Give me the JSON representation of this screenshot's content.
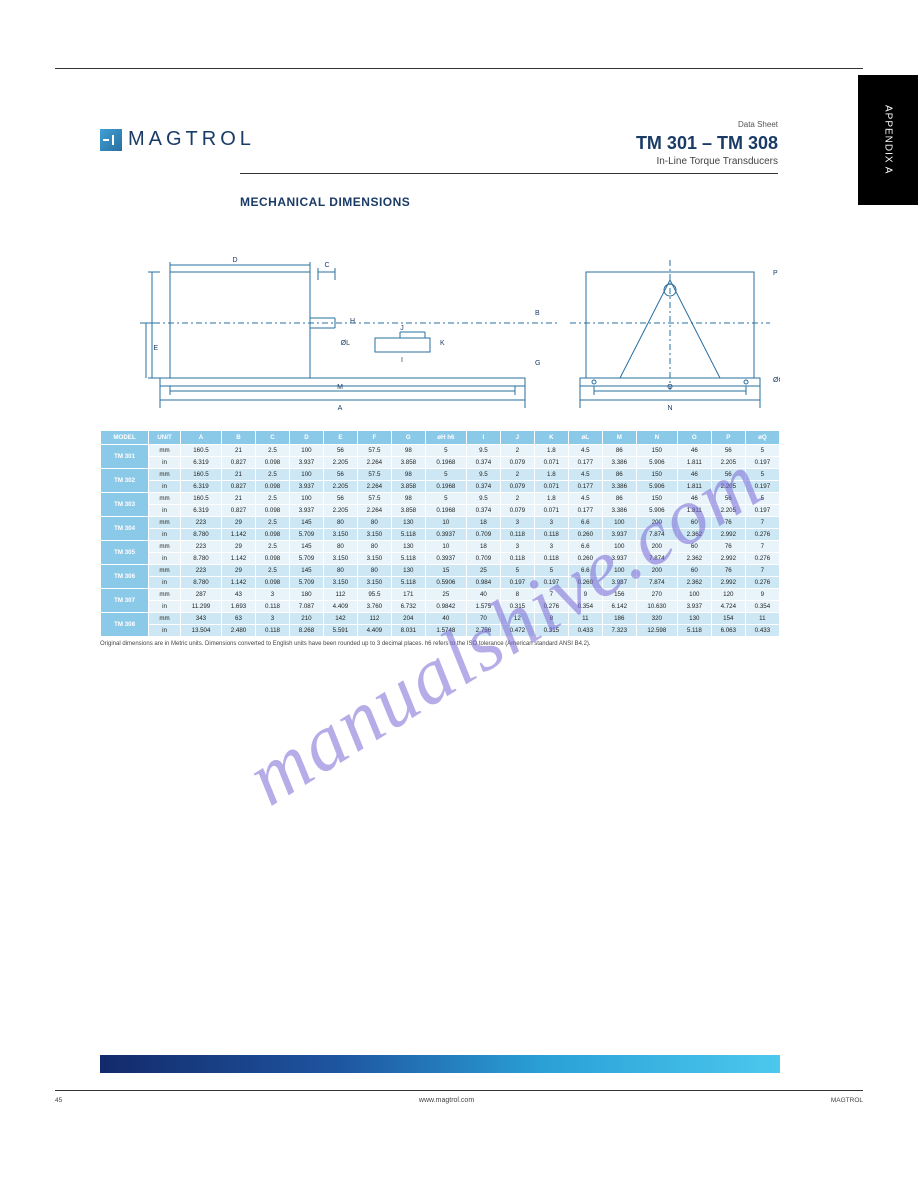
{
  "colors": {
    "brand_text": "#1a3b66",
    "table_header_bg": "#8bc9e8",
    "table_band_dark": "#cde8f4",
    "table_band_light": "#e8f4fa",
    "gradient_start": "#132a6a",
    "gradient_end": "#4cc8ee",
    "watermark": "#7a6ad6",
    "diagram_stroke": "#2a6fa0",
    "diagram_dash": "#2a6fa0"
  },
  "header": {
    "brand": "MAGTROL",
    "datasheet": "Data Sheet",
    "title": "TM 301 – TM 308",
    "subtitle": "In-Line Torque Transducers"
  },
  "side_tab": "APPENDIX A",
  "section_title": "MECHANICAL DIMENSIONS",
  "diagram_labels": {
    "A": "A",
    "B": "B",
    "C": "C",
    "D": "D",
    "E": "E",
    "F": "F",
    "G": "G",
    "H": "H",
    "I": "I",
    "J": "J",
    "K": "K",
    "L": "ØL",
    "M": "M",
    "N": "N",
    "O": "O",
    "P": "P",
    "Q": "ØQ"
  },
  "table": {
    "headers": [
      "MODEL",
      "UNIT",
      "A",
      "B",
      "C",
      "D",
      "E",
      "F",
      "G",
      "øH h6",
      "I",
      "J",
      "K",
      "øL",
      "M",
      "N",
      "O",
      "P",
      "øQ"
    ],
    "rows": [
      {
        "model": "TM 301",
        "unit": [
          "mm",
          "in"
        ],
        "cells": [
          [
            "160.5",
            "6.319"
          ],
          [
            "21",
            "0.827"
          ],
          [
            "2.5",
            "0.098"
          ],
          [
            "100",
            "3.937"
          ],
          [
            "56",
            "2.205"
          ],
          [
            "57.5",
            "2.264"
          ],
          [
            "98",
            "3.858"
          ],
          [
            "5",
            "0.1968"
          ],
          [
            "9.5",
            "0.374"
          ],
          [
            "2",
            "0.079"
          ],
          [
            "1.8",
            "0.071"
          ],
          [
            "4.5",
            "0.177"
          ],
          [
            "86",
            "3.386"
          ],
          [
            "150",
            "5.906"
          ],
          [
            "46",
            "1.811"
          ],
          [
            "56",
            "2.205"
          ],
          [
            "5",
            "0.197"
          ]
        ]
      },
      {
        "model": "TM 302",
        "unit": [
          "mm",
          "in"
        ],
        "cells": [
          [
            "160.5",
            "6.319"
          ],
          [
            "21",
            "0.827"
          ],
          [
            "2.5",
            "0.098"
          ],
          [
            "100",
            "3.937"
          ],
          [
            "56",
            "2.205"
          ],
          [
            "57.5",
            "2.264"
          ],
          [
            "98",
            "3.858"
          ],
          [
            "5",
            "0.1968"
          ],
          [
            "9.5",
            "0.374"
          ],
          [
            "2",
            "0.079"
          ],
          [
            "1.8",
            "0.071"
          ],
          [
            "4.5",
            "0.177"
          ],
          [
            "86",
            "3.386"
          ],
          [
            "150",
            "5.906"
          ],
          [
            "46",
            "1.811"
          ],
          [
            "56",
            "2.205"
          ],
          [
            "5",
            "0.197"
          ]
        ]
      },
      {
        "model": "TM 303",
        "unit": [
          "mm",
          "in"
        ],
        "cells": [
          [
            "160.5",
            "6.319"
          ],
          [
            "21",
            "0.827"
          ],
          [
            "2.5",
            "0.098"
          ],
          [
            "100",
            "3.937"
          ],
          [
            "56",
            "2.205"
          ],
          [
            "57.5",
            "2.264"
          ],
          [
            "98",
            "3.858"
          ],
          [
            "5",
            "0.1968"
          ],
          [
            "9.5",
            "0.374"
          ],
          [
            "2",
            "0.079"
          ],
          [
            "1.8",
            "0.071"
          ],
          [
            "4.5",
            "0.177"
          ],
          [
            "86",
            "3.386"
          ],
          [
            "150",
            "5.906"
          ],
          [
            "46",
            "1.811"
          ],
          [
            "56",
            "2.205"
          ],
          [
            "5",
            "0.197"
          ]
        ]
      },
      {
        "model": "TM 304",
        "unit": [
          "mm",
          "in"
        ],
        "cells": [
          [
            "223",
            "8.780"
          ],
          [
            "29",
            "1.142"
          ],
          [
            "2.5",
            "0.098"
          ],
          [
            "145",
            "5.709"
          ],
          [
            "80",
            "3.150"
          ],
          [
            "80",
            "3.150"
          ],
          [
            "130",
            "5.118"
          ],
          [
            "10",
            "0.3937"
          ],
          [
            "18",
            "0.709"
          ],
          [
            "3",
            "0.118"
          ],
          [
            "3",
            "0.118"
          ],
          [
            "6.6",
            "0.260"
          ],
          [
            "100",
            "3.937"
          ],
          [
            "200",
            "7.874"
          ],
          [
            "60",
            "2.362"
          ],
          [
            "76",
            "2.992"
          ],
          [
            "7",
            "0.276"
          ]
        ]
      },
      {
        "model": "TM 305",
        "unit": [
          "mm",
          "in"
        ],
        "cells": [
          [
            "223",
            "8.780"
          ],
          [
            "29",
            "1.142"
          ],
          [
            "2.5",
            "0.098"
          ],
          [
            "145",
            "5.709"
          ],
          [
            "80",
            "3.150"
          ],
          [
            "80",
            "3.150"
          ],
          [
            "130",
            "5.118"
          ],
          [
            "10",
            "0.3937"
          ],
          [
            "18",
            "0.709"
          ],
          [
            "3",
            "0.118"
          ],
          [
            "3",
            "0.118"
          ],
          [
            "6.6",
            "0.260"
          ],
          [
            "100",
            "3.937"
          ],
          [
            "200",
            "7.874"
          ],
          [
            "60",
            "2.362"
          ],
          [
            "76",
            "2.992"
          ],
          [
            "7",
            "0.276"
          ]
        ]
      },
      {
        "model": "TM 306",
        "unit": [
          "mm",
          "in"
        ],
        "cells": [
          [
            "223",
            "8.780"
          ],
          [
            "29",
            "1.142"
          ],
          [
            "2.5",
            "0.098"
          ],
          [
            "145",
            "5.709"
          ],
          [
            "80",
            "3.150"
          ],
          [
            "80",
            "3.150"
          ],
          [
            "130",
            "5.118"
          ],
          [
            "15",
            "0.5906"
          ],
          [
            "25",
            "0.984"
          ],
          [
            "5",
            "0.197"
          ],
          [
            "5",
            "0.197"
          ],
          [
            "6.6",
            "0.260"
          ],
          [
            "100",
            "3.937"
          ],
          [
            "200",
            "7.874"
          ],
          [
            "60",
            "2.362"
          ],
          [
            "76",
            "2.992"
          ],
          [
            "7",
            "0.276"
          ]
        ]
      },
      {
        "model": "TM 307",
        "unit": [
          "mm",
          "in"
        ],
        "cells": [
          [
            "287",
            "11.299"
          ],
          [
            "43",
            "1.693"
          ],
          [
            "3",
            "0.118"
          ],
          [
            "180",
            "7.087"
          ],
          [
            "112",
            "4.409"
          ],
          [
            "95.5",
            "3.760"
          ],
          [
            "171",
            "6.732"
          ],
          [
            "25",
            "0.9842"
          ],
          [
            "40",
            "1.575"
          ],
          [
            "8",
            "0.315"
          ],
          [
            "7",
            "0.276"
          ],
          [
            "9",
            "0.354"
          ],
          [
            "156",
            "6.142"
          ],
          [
            "270",
            "10.630"
          ],
          [
            "100",
            "3.937"
          ],
          [
            "120",
            "4.724"
          ],
          [
            "9",
            "0.354"
          ]
        ]
      },
      {
        "model": "TM 308",
        "unit": [
          "mm",
          "in"
        ],
        "cells": [
          [
            "343",
            "13.504"
          ],
          [
            "63",
            "2.480"
          ],
          [
            "3",
            "0.118"
          ],
          [
            "210",
            "8.268"
          ],
          [
            "142",
            "5.591"
          ],
          [
            "112",
            "4.409"
          ],
          [
            "204",
            "8.031"
          ],
          [
            "40",
            "1.5748"
          ],
          [
            "70",
            "2.756"
          ],
          [
            "12",
            "0.472"
          ],
          [
            "8",
            "0.315"
          ],
          [
            "11",
            "0.433"
          ],
          [
            "186",
            "7.323"
          ],
          [
            "320",
            "12.598"
          ],
          [
            "130",
            "5.118"
          ],
          [
            "154",
            "6.063"
          ],
          [
            "11",
            "0.433"
          ]
        ]
      }
    ],
    "units_note": "Original dimensions are in Metric units. Dimensions converted to English units have been rounded up to 3 decimal places. h6 refers to the ISO tolerance (American standard ANSI B4.2)."
  },
  "watermark": "manualshive.com",
  "footer": {
    "page": "45",
    "site": "www.magtrol.com",
    "right": "MAGTROL"
  }
}
